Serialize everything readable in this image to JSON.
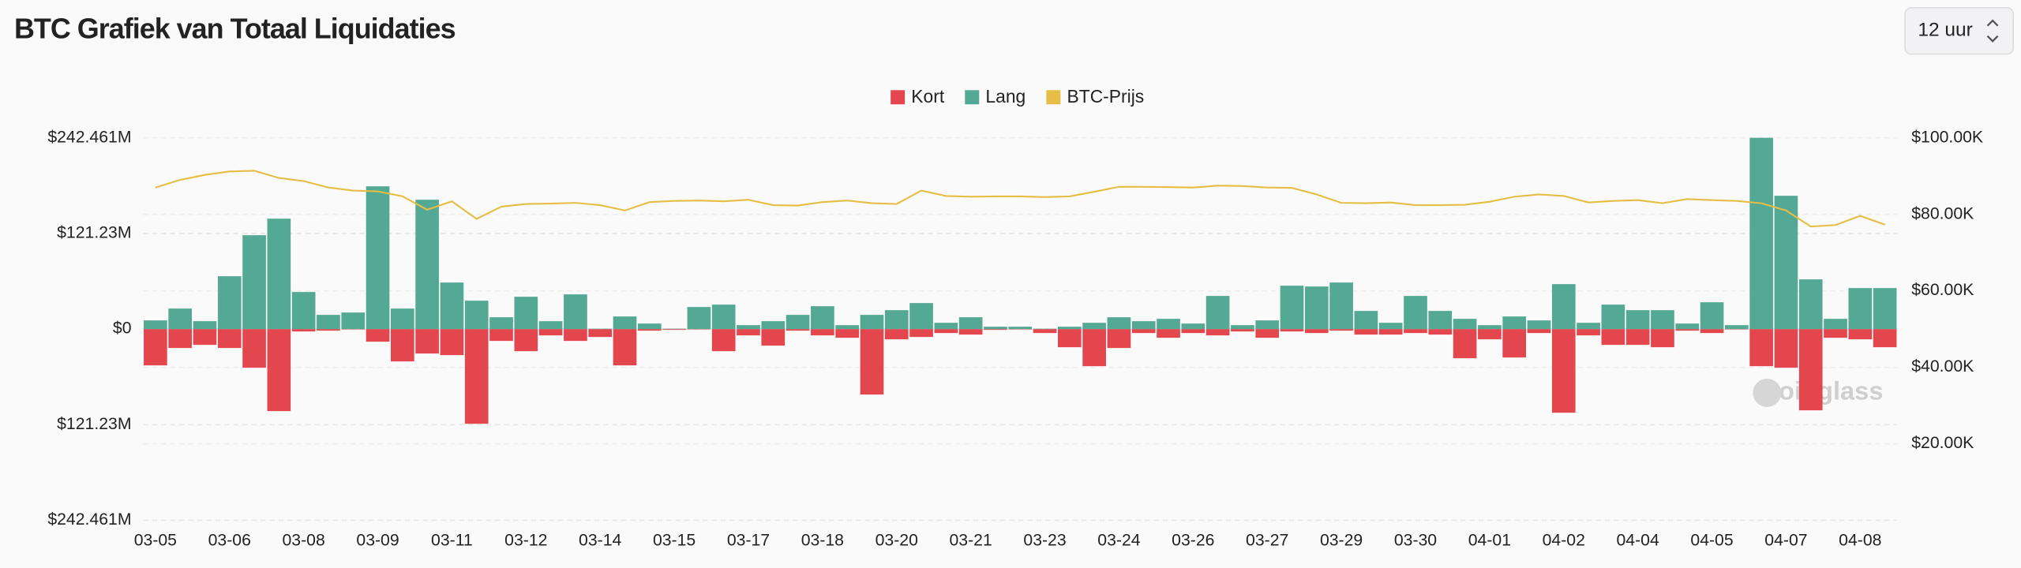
{
  "chart_data": {
    "type": "bar",
    "title": "BTC Grafiek van Totaal Liquidaties",
    "interval": "12 uur",
    "watermark": "coinglass",
    "categories": [
      "03-05",
      null,
      null,
      "03-06",
      null,
      null,
      "03-08",
      null,
      null,
      "03-09",
      null,
      null,
      "03-11",
      null,
      null,
      "03-12",
      null,
      null,
      "03-14",
      null,
      null,
      "03-15",
      null,
      null,
      "03-17",
      null,
      null,
      "03-18",
      null,
      null,
      "03-20",
      null,
      null,
      "03-21",
      null,
      null,
      "03-23",
      null,
      null,
      "03-24",
      null,
      null,
      "03-26",
      null,
      null,
      "03-27",
      null,
      null,
      "03-29",
      null,
      null,
      "03-30",
      null,
      null,
      "04-01",
      null,
      null,
      "04-02",
      null,
      null,
      "04-04",
      null,
      null,
      "04-05",
      null,
      null,
      "04-07",
      null,
      null,
      "04-08",
      null
    ],
    "series": [
      {
        "name": "Kort",
        "color": "#e3474d",
        "values": [
          -46,
          -24,
          -20,
          -24,
          -49,
          -104,
          -3,
          -2,
          -0.5,
          -16,
          -41,
          -31,
          -33,
          -120,
          -15,
          -28,
          -8,
          -15,
          -10,
          -46,
          -2,
          -1,
          -0.5,
          -28,
          -8,
          -21,
          -2,
          -8,
          -11,
          -83,
          -13,
          -10,
          -5,
          -7,
          -1,
          -0.5,
          -5,
          -23,
          -47,
          -24,
          -5,
          -11,
          -5,
          -8,
          -3,
          -11,
          -3,
          -5,
          -2,
          -7,
          -7,
          -5,
          -7,
          -37,
          -13,
          -36,
          -5,
          -106,
          -8,
          -20,
          -20,
          -23,
          -2,
          -5,
          -0.5,
          -47,
          -49,
          -103,
          -11,
          -13,
          -23
        ]
      },
      {
        "name": "Lang",
        "color": "#54a994",
        "values": [
          11,
          26,
          10,
          67,
          119,
          140,
          47,
          18,
          21,
          181,
          26,
          164,
          59,
          36,
          15,
          41,
          10,
          44,
          0.5,
          16,
          7,
          0.5,
          28,
          31,
          5,
          10,
          18,
          29,
          5,
          18,
          24,
          33,
          8,
          15,
          3,
          3,
          0.5,
          3,
          8,
          15,
          10,
          13,
          7,
          42,
          5,
          11,
          55,
          54,
          59,
          23,
          8,
          42,
          23,
          13,
          5,
          16,
          11,
          57,
          8,
          31,
          24,
          24,
          7,
          34,
          5,
          242.461,
          169,
          63,
          13,
          52,
          52
        ]
      },
      {
        "name": "BTC-Prijs",
        "color": "#e6bd45",
        "axis": "y2",
        "values": [
          87000,
          89000,
          90300,
          91200,
          91400,
          89500,
          88700,
          87000,
          86200,
          86000,
          84700,
          81200,
          83400,
          78800,
          82000,
          82700,
          82800,
          83000,
          82400,
          81000,
          83200,
          83500,
          83600,
          83400,
          83800,
          82400,
          82300,
          83200,
          83600,
          82900,
          82700,
          86200,
          84800,
          84600,
          84700,
          84700,
          84500,
          84700,
          85900,
          87200,
          87200,
          87100,
          87000,
          87500,
          87400,
          87000,
          86900,
          85200,
          83000,
          82900,
          83100,
          82400,
          82400,
          82500,
          83300,
          84600,
          85200,
          84800,
          83100,
          83500,
          83700,
          82900,
          84000,
          83700,
          83500,
          82900,
          81000,
          76800,
          77200,
          79600,
          77300
        ]
      }
    ],
    "ylim": [
      -242.461,
      242.461
    ],
    "yticks": [
      {
        "value": 242.461,
        "label": "$242.461M"
      },
      {
        "value": 121.23,
        "label": "$121.23M"
      },
      {
        "value": 0,
        "label": "$0"
      },
      {
        "value": -121.23,
        "label": "$121.23M"
      },
      {
        "value": -242.461,
        "label": "$242.461M"
      }
    ],
    "y2lim": [
      0,
      100000
    ],
    "y2ticks": [
      {
        "value": 100000,
        "label": "$100.00K"
      },
      {
        "value": 80000,
        "label": "$80.00K"
      },
      {
        "value": 60000,
        "label": "$60.00K"
      },
      {
        "value": 40000,
        "label": "$40.00K"
      },
      {
        "value": 20000,
        "label": "$20.00K"
      }
    ],
    "grid": true,
    "legend": "top"
  }
}
